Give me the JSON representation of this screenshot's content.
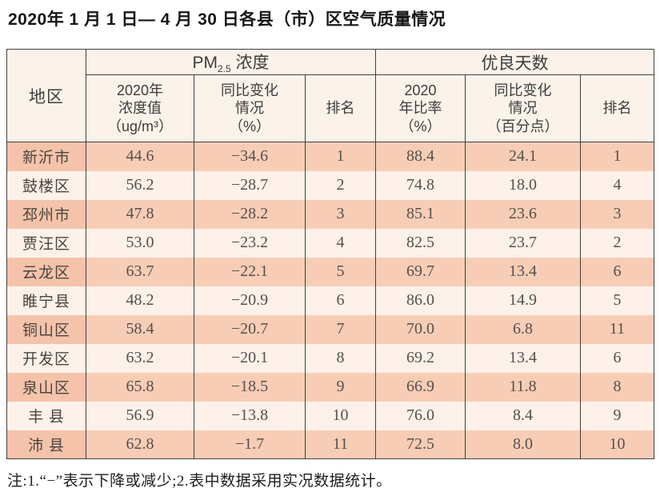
{
  "page": {
    "title": "2020年 1 月 1 日— 4 月 30 日各县（市）区空气质量情况",
    "note": "注:1.“−”表示下降或减少;2.表中数据采用实况数据统计。"
  },
  "table": {
    "header": {
      "region": "地区",
      "pm_group": {
        "prefix": "PM",
        "sub": "2.5",
        "suffix": " 浓度"
      },
      "good_group": "优良天数",
      "sub_headers": [
        "2020年\n浓度值\n（ug/m³）",
        "同比变化\n情况\n（%）",
        "排名",
        "2020\n年比率\n（%）",
        "同比变化\n情况\n（百分点）",
        "排名"
      ]
    },
    "rows": [
      {
        "region": "新沂市",
        "pm_value": "44.6",
        "pm_change": "−34.6",
        "pm_rank": "1",
        "good_ratio": "88.4",
        "good_change": "24.1",
        "good_rank": "1"
      },
      {
        "region": "鼓楼区",
        "pm_value": "56.2",
        "pm_change": "−28.7",
        "pm_rank": "2",
        "good_ratio": "74.8",
        "good_change": "18.0",
        "good_rank": "4"
      },
      {
        "region": "邳州市",
        "pm_value": "47.8",
        "pm_change": "−28.2",
        "pm_rank": "3",
        "good_ratio": "85.1",
        "good_change": "23.6",
        "good_rank": "3"
      },
      {
        "region": "贾汪区",
        "pm_value": "53.0",
        "pm_change": "−23.2",
        "pm_rank": "4",
        "good_ratio": "82.5",
        "good_change": "23.7",
        "good_rank": "2"
      },
      {
        "region": "云龙区",
        "pm_value": "63.7",
        "pm_change": "−22.1",
        "pm_rank": "5",
        "good_ratio": "69.7",
        "good_change": "13.4",
        "good_rank": "6"
      },
      {
        "region": "睢宁县",
        "pm_value": "48.2",
        "pm_change": "−20.9",
        "pm_rank": "6",
        "good_ratio": "86.0",
        "good_change": "14.9",
        "good_rank": "5"
      },
      {
        "region": "铜山区",
        "pm_value": "58.4",
        "pm_change": "−20.7",
        "pm_rank": "7",
        "good_ratio": "70.0",
        "good_change": "6.8",
        "good_rank": "11"
      },
      {
        "region": "开发区",
        "pm_value": "63.2",
        "pm_change": "−20.1",
        "pm_rank": "8",
        "good_ratio": "69.2",
        "good_change": "13.4",
        "good_rank": "6"
      },
      {
        "region": "泉山区",
        "pm_value": "65.8",
        "pm_change": "−18.5",
        "pm_rank": "9",
        "good_ratio": "66.9",
        "good_change": "11.8",
        "good_rank": "8"
      },
      {
        "region": "丰 县",
        "pm_value": "56.9",
        "pm_change": "−13.8",
        "pm_rank": "10",
        "good_ratio": "76.0",
        "good_change": "8.4",
        "good_rank": "9"
      },
      {
        "region": "沛 县",
        "pm_value": "62.8",
        "pm_change": "−1.7",
        "pm_rank": "11",
        "good_ratio": "72.5",
        "good_change": "8.0",
        "good_rank": "10"
      }
    ]
  },
  "chart_data": {
    "type": "table",
    "title": "2020年1月1日—4月30日各县（市）区空气质量情况",
    "column_groups": [
      "地区",
      "PM2.5浓度",
      "优良天数"
    ],
    "columns": [
      "地区",
      "PM2.5浓度 2020年浓度值（ug/m³）",
      "PM2.5浓度 同比变化情况（%）",
      "PM2.5浓度 排名",
      "优良天数 2020年比率（%）",
      "优良天数 同比变化情况（百分点）",
      "优良天数 排名"
    ],
    "rows": [
      [
        "新沂市",
        44.6,
        -34.6,
        1,
        88.4,
        24.1,
        1
      ],
      [
        "鼓楼区",
        56.2,
        -28.7,
        2,
        74.8,
        18.0,
        4
      ],
      [
        "邳州市",
        47.8,
        -28.2,
        3,
        85.1,
        23.6,
        3
      ],
      [
        "贾汪区",
        53.0,
        -23.2,
        4,
        82.5,
        23.7,
        2
      ],
      [
        "云龙区",
        63.7,
        -22.1,
        5,
        69.7,
        13.4,
        6
      ],
      [
        "睢宁县",
        48.2,
        -20.9,
        6,
        86.0,
        14.9,
        5
      ],
      [
        "铜山区",
        58.4,
        -20.7,
        7,
        70.0,
        6.8,
        11
      ],
      [
        "开发区",
        63.2,
        -20.1,
        8,
        69.2,
        13.4,
        6
      ],
      [
        "泉山区",
        65.8,
        -18.5,
        9,
        66.9,
        11.8,
        8
      ],
      [
        "丰县",
        56.9,
        -13.8,
        10,
        76.0,
        8.4,
        9
      ],
      [
        "沛县",
        62.8,
        -1.7,
        11,
        72.5,
        8.0,
        10
      ]
    ],
    "footnote": "注:1.“−”表示下降或减少;2.表中数据采用实况数据统计。"
  },
  "colors": {
    "dark_row": "#f8cdb6",
    "dark_region_cell": "#f5c3aa",
    "light_row": "#fdf1ea",
    "header_bg": "#fbf2ea",
    "border": "#45403b"
  }
}
